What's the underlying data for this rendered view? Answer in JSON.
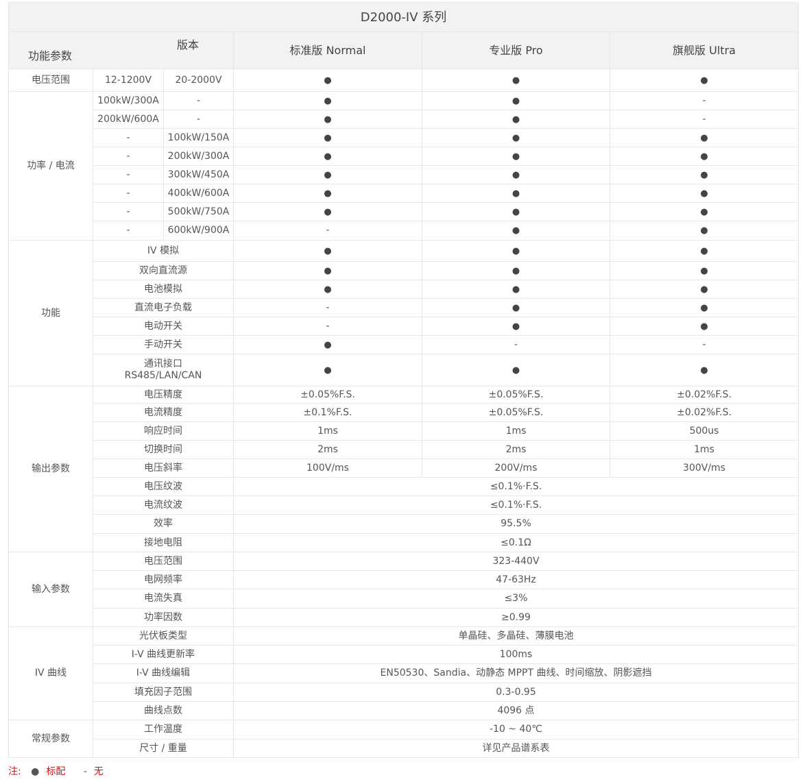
{
  "title": "D2000-IV 系列",
  "header": {
    "params": "功能参数",
    "version": "版本",
    "editions": [
      "标准版 Normal",
      "专业版 Pro",
      "旗舰版 Ultra"
    ]
  },
  "voltage_range": {
    "label": "电压范围",
    "a": "12-1200V",
    "b": "20-2000V",
    "values": [
      "●",
      "●",
      "●"
    ]
  },
  "power": {
    "label": "功率 / 电流",
    "rows": [
      {
        "a": "100kW/300A",
        "b": "-",
        "values": [
          "●",
          "●",
          "-"
        ]
      },
      {
        "a": "200kW/600A",
        "b": "-",
        "values": [
          "●",
          "●",
          "-"
        ]
      },
      {
        "a": "-",
        "b": "100kW/150A",
        "values": [
          "●",
          "●",
          "●"
        ]
      },
      {
        "a": "-",
        "b": "200kW/300A",
        "values": [
          "●",
          "●",
          "●"
        ]
      },
      {
        "a": "-",
        "b": "300kW/450A",
        "values": [
          "●",
          "●",
          "●"
        ]
      },
      {
        "a": "-",
        "b": "400kW/600A",
        "values": [
          "●",
          "●",
          "●"
        ]
      },
      {
        "a": "-",
        "b": "500kW/750A",
        "values": [
          "●",
          "●",
          "●"
        ]
      },
      {
        "a": "-",
        "b": "600kW/900A",
        "values": [
          "-",
          "●",
          "●"
        ]
      }
    ]
  },
  "groups": [
    {
      "label": "功能",
      "rows": [
        {
          "name": "IV 模拟",
          "values": [
            "●",
            "●",
            "●"
          ]
        },
        {
          "name": "双向直流源",
          "values": [
            "●",
            "●",
            "●"
          ]
        },
        {
          "name": "电池模拟",
          "values": [
            "●",
            "●",
            "●"
          ]
        },
        {
          "name": "直流电子负载",
          "values": [
            "-",
            "●",
            "●"
          ]
        },
        {
          "name": "电动开关",
          "values": [
            "-",
            "●",
            "●"
          ]
        },
        {
          "name": "手动开关",
          "values": [
            "●",
            "-",
            "-"
          ]
        },
        {
          "name": "通讯接口",
          "name2": "RS485/LAN/CAN",
          "values": [
            "●",
            "●",
            "●"
          ]
        }
      ]
    },
    {
      "label": "输出参数",
      "rows": [
        {
          "name": "电压精度",
          "values": [
            "±0.05%F.S.",
            "±0.05%F.S.",
            "±0.02%F.S."
          ]
        },
        {
          "name": "电流精度",
          "values": [
            "±0.1%F.S.",
            "±0.05%F.S.",
            "±0.02%F.S."
          ]
        },
        {
          "name": "响应时间",
          "values": [
            "1ms",
            "1ms",
            "500us"
          ]
        },
        {
          "name": "切换时间",
          "values": [
            "2ms",
            "2ms",
            "1ms"
          ]
        },
        {
          "name": "电压斜率",
          "values": [
            "100V/ms",
            "200V/ms",
            "300V/ms"
          ]
        },
        {
          "name": "电压纹波",
          "value": "≤0.1%·F.S."
        },
        {
          "name": "电流纹波",
          "value": "≤0.1%·F.S."
        },
        {
          "name": "效率",
          "value": "95.5%"
        },
        {
          "name": "接地电阻",
          "value": "≤0.1Ω"
        }
      ]
    },
    {
      "label": "输入参数",
      "rows": [
        {
          "name": "电压范围",
          "value": "323-440V"
        },
        {
          "name": "电网频率",
          "value": "47-63Hz"
        },
        {
          "name": "电流失真",
          "value": "≤3%"
        },
        {
          "name": "功率因数",
          "value": "≥0.99"
        }
      ]
    },
    {
      "label": "IV 曲线",
      "rows": [
        {
          "name": "光伏板类型",
          "value": "单晶硅、多晶硅、薄膜电池"
        },
        {
          "name": "I-V 曲线更新率",
          "value": "100ms"
        },
        {
          "name": "I-V 曲线编辑",
          "value": "EN50530、Sandia、动静态 MPPT 曲线、时间缩放、阴影遮挡"
        },
        {
          "name": "填充因子范围",
          "value": "0.3-0.95"
        },
        {
          "name": "曲线点数",
          "value": "4096 点"
        }
      ]
    },
    {
      "label": "常规参数",
      "rows": [
        {
          "name": "工作温度",
          "value": "-10  ~  40℃"
        },
        {
          "name": "尺寸 / 重量",
          "value": "详见产品谱系表"
        }
      ]
    }
  ],
  "note": {
    "label": "注:",
    "dot_symbol": "●",
    "dot_text": "标配",
    "dash_symbol": "-",
    "dash_text": "无"
  }
}
